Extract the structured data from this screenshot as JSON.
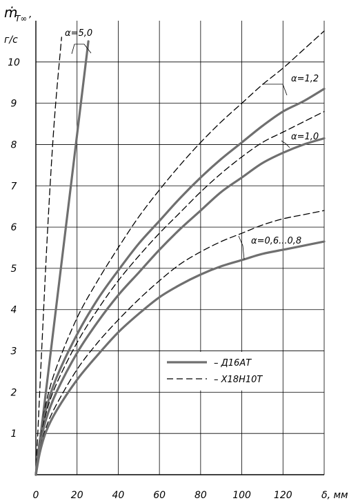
{
  "chart_data": {
    "type": "line",
    "title": "",
    "ylabel_symbol": "ṁ",
    "ylabel_subscript": "T∞",
    "ylabel_suffix": ",",
    "ylabel_unit": "г/с",
    "xlabel": "δ, мм",
    "xlim": [
      0,
      140
    ],
    "ylim": [
      0,
      11
    ],
    "x_ticks": [
      "0",
      "20",
      "40",
      "60",
      "80",
      "100",
      "120"
    ],
    "y_ticks": [
      "1",
      "2",
      "3",
      "4",
      "5",
      "6",
      "7",
      "8",
      "9",
      "10"
    ],
    "x_tick_values": [
      0,
      20,
      40,
      60,
      80,
      100,
      120
    ],
    "y_tick_values": [
      1,
      2,
      3,
      4,
      5,
      6,
      7,
      8,
      9,
      10
    ],
    "grid": true,
    "legend": {
      "position": "lower-center",
      "entries": [
        {
          "label": "– Д16АТ",
          "style": "solid"
        },
        {
          "label": "– Х18Н10Т",
          "style": "dashed"
        }
      ]
    },
    "annotations": [
      {
        "text": "α=5,0"
      },
      {
        "text": "α=1,2"
      },
      {
        "text": "α=1,0"
      },
      {
        "text": "α=0,6...0,8"
      }
    ],
    "series": [
      {
        "style": "solid",
        "group": "α=5,0",
        "x": [
          0,
          25.5
        ],
        "y": [
          0,
          10.5
        ]
      },
      {
        "style": "dashed",
        "group": "α=5,0",
        "x": [
          0,
          3,
          6,
          9,
          12.5
        ],
        "y": [
          0,
          3.2,
          6.2,
          8.6,
          10.6
        ]
      },
      {
        "style": "dashed",
        "group": "α=1,2",
        "x": [
          0,
          2,
          5,
          10,
          20,
          30,
          40,
          50,
          60,
          70,
          80,
          90,
          100,
          110,
          120,
          130,
          140
        ],
        "y": [
          0,
          0.9,
          1.75,
          2.6,
          3.8,
          4.7,
          5.5,
          6.25,
          6.9,
          7.5,
          8.05,
          8.55,
          9.0,
          9.45,
          9.85,
          10.3,
          10.75
        ]
      },
      {
        "style": "solid",
        "group": "α=1,2",
        "x": [
          0,
          2,
          5,
          10,
          20,
          30,
          40,
          50,
          60,
          70,
          80,
          90,
          100,
          110,
          120,
          130,
          140
        ],
        "y": [
          0,
          0.85,
          1.6,
          2.35,
          3.4,
          4.25,
          4.95,
          5.6,
          6.15,
          6.7,
          7.2,
          7.65,
          8.05,
          8.45,
          8.8,
          9.05,
          9.35
        ]
      },
      {
        "style": "dashed",
        "group": "α=1,0",
        "x": [
          0,
          2,
          5,
          10,
          20,
          30,
          40,
          50,
          60,
          70,
          80,
          90,
          100,
          110,
          120,
          130,
          140
        ],
        "y": [
          0,
          0.8,
          1.5,
          2.2,
          3.2,
          4.0,
          4.7,
          5.3,
          5.85,
          6.35,
          6.85,
          7.3,
          7.7,
          8.05,
          8.3,
          8.55,
          8.8
        ]
      },
      {
        "style": "solid",
        "group": "α=1,0",
        "x": [
          0,
          2,
          5,
          10,
          20,
          30,
          40,
          50,
          60,
          70,
          80,
          90,
          100,
          110,
          120,
          130,
          140
        ],
        "y": [
          0,
          0.7,
          1.35,
          2.0,
          2.95,
          3.7,
          4.35,
          4.9,
          5.45,
          5.95,
          6.4,
          6.85,
          7.2,
          7.55,
          7.8,
          8.0,
          8.15
        ]
      },
      {
        "style": "dashed",
        "group": "α=0,6...0,8",
        "x": [
          0,
          2,
          5,
          10,
          20,
          30,
          40,
          50,
          60,
          70,
          80,
          90,
          100,
          110,
          120,
          130,
          140
        ],
        "y": [
          0,
          0.6,
          1.15,
          1.7,
          2.55,
          3.2,
          3.75,
          4.25,
          4.7,
          5.1,
          5.4,
          5.65,
          5.85,
          6.05,
          6.2,
          6.3,
          6.4
        ]
      },
      {
        "style": "solid",
        "group": "α=0,6...0,8",
        "x": [
          0,
          2,
          5,
          10,
          20,
          30,
          40,
          50,
          60,
          70,
          80,
          90,
          100,
          110,
          120,
          130,
          140
        ],
        "y": [
          0,
          0.55,
          1.05,
          1.55,
          2.3,
          2.9,
          3.45,
          3.9,
          4.3,
          4.6,
          4.85,
          5.05,
          5.2,
          5.35,
          5.45,
          5.55,
          5.65
        ]
      }
    ]
  }
}
